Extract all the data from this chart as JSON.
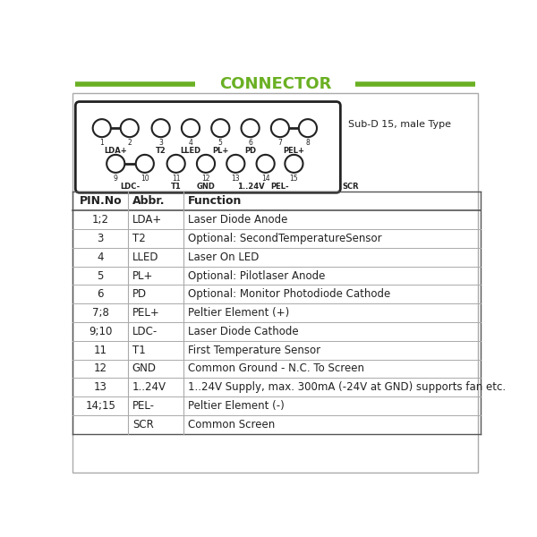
{
  "title": "CONNECTOR",
  "title_color": "#6ab023",
  "title_line_color": "#6ab023",
  "bg_color": "#ffffff",
  "connector_label": "Sub-D 15, male Type",
  "text_color": "#222222",
  "table_header": [
    "PIN.No",
    "Abbr.",
    "Function"
  ],
  "table_rows": [
    [
      "1;2",
      "LDA+",
      "Laser Diode Anode"
    ],
    [
      "3",
      "T2",
      "Optional: SecondTemperatureSensor"
    ],
    [
      "4",
      "LLED",
      "Laser On LED"
    ],
    [
      "5",
      "PL+",
      "Optional: Pilotlaser Anode"
    ],
    [
      "6",
      "PD",
      "Optional: Monitor Photodiode Cathode"
    ],
    [
      "7;8",
      "PEL+",
      "Peltier Element (+)"
    ],
    [
      "9;10",
      "LDC-",
      "Laser Diode Cathode"
    ],
    [
      "11",
      "T1",
      "First Temperature Sensor"
    ],
    [
      "12",
      "GND",
      "Common Ground - N.C. To Screen"
    ],
    [
      "13",
      "1..24V",
      "1..24V Supply, max. 300mA (-24V at GND) supports fan etc."
    ],
    [
      "14;15",
      "PEL-",
      "Peltier Element (-)"
    ],
    [
      "",
      "SCR",
      "Common Screen"
    ]
  ]
}
